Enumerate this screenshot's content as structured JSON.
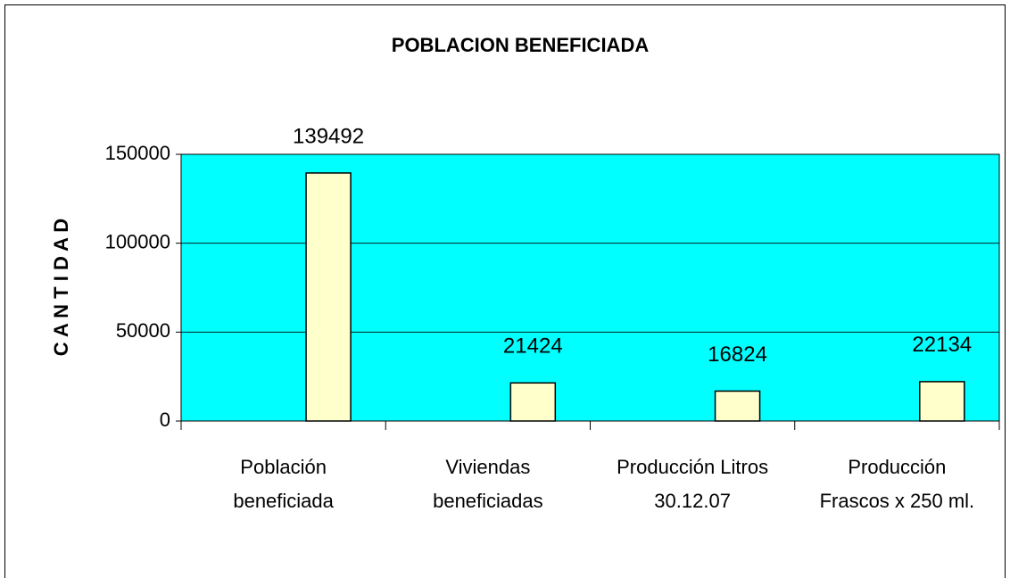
{
  "chart_data": {
    "type": "bar",
    "title": "POBLACION BENEFICIADA",
    "y_label": "C A N T I D A D",
    "categories": [
      "Población\nbeneficiada",
      "Viviendas\nbeneficiadas",
      "Producción Litros\n30.12.07",
      "Producción\nFrascos x 250 ml."
    ],
    "values": [
      139492,
      21424,
      16824,
      22134
    ],
    "color": "#ffffcc",
    "plot_background": "#00ffff",
    "ylim": [
      0,
      150000
    ],
    "yticks": [
      0,
      50000,
      100000,
      150000
    ],
    "grid": true
  }
}
